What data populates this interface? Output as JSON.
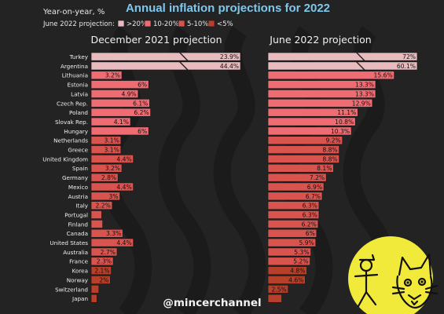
{
  "header": {
    "subtitle": "Year-on-year, %",
    "legend_label": "June 2022 projection:",
    "legend": [
      {
        "label": ">20%",
        "color": "#e8bcbf"
      },
      {
        "label": "10-20%",
        "color": "#f06c73"
      },
      {
        "label": "5-10%",
        "color": "#d9544f"
      },
      {
        "label": "<5%",
        "color": "#b6402a"
      }
    ]
  },
  "footer": {
    "handle": "@mincerchannel"
  },
  "colors": {
    "gt20": "#e8bcbf",
    "b10_20": "#f06c73",
    "b5_10": "#d9544f",
    "lt5": "#b6402a",
    "title": "#7ec8ec"
  },
  "chart_data": {
    "type": "bar",
    "title": "Annual inflation projections for 2022",
    "categories": [
      "Turkey",
      "Argentina",
      "Lithuania",
      "Estonia",
      "Latvia",
      "Czech Rep.",
      "Poland",
      "Slovak Rep.",
      "Hungary",
      "Netherlands",
      "Greece",
      "United Kingdom",
      "Spain",
      "Germany",
      "Mexico",
      "Austria",
      "Italy",
      "Portugal",
      "Finland",
      "Canada",
      "United States",
      "Australia",
      "France",
      "Korea",
      "Norway",
      "Switzerland",
      "Japan"
    ],
    "series": [
      {
        "name": "December 2021 projection",
        "values": [
          23.9,
          44.4,
          3.2,
          6,
          4.9,
          6.1,
          6.2,
          4.1,
          6,
          3.1,
          3.1,
          4.4,
          3.2,
          2.8,
          4.4,
          3,
          2.2,
          1.1,
          1.2,
          3.3,
          4.4,
          2.7,
          2.3,
          2.1,
          2,
          0.8,
          0.6
        ],
        "labels": [
          "23.9%",
          "44.4%",
          "3.2%",
          "6%",
          "4.9%",
          "6.1%",
          "6.2%",
          "4.1%",
          "6%",
          "3.1%",
          "3.1%",
          "4.4%",
          "3.2%",
          "2.8%",
          "4.4%",
          "3%",
          "2.2%",
          "",
          "",
          "3.3%",
          "4.4%",
          "2.7%",
          "2.3%",
          "2.1%",
          "2%",
          "",
          ""
        ]
      },
      {
        "name": "June 2022 projection",
        "values": [
          72,
          60.1,
          15.6,
          13.3,
          13.3,
          12.9,
          11.1,
          10.8,
          10.3,
          9.2,
          8.8,
          8.8,
          8.1,
          7.2,
          6.9,
          6.7,
          6.3,
          6.3,
          6.2,
          6,
          5.9,
          5.3,
          5.2,
          4.8,
          4.6,
          2.5,
          1.7
        ],
        "labels": [
          "72%",
          "60.1%",
          "15.6%",
          "13.3%",
          "13.3%",
          "12.9%",
          "11.1%",
          "10.8%",
          "10.3%",
          "9.2%",
          "8.8%",
          "8.8%",
          "8.1%",
          "7.2%",
          "6.9%",
          "6.7%",
          "6.3%",
          "6.3%",
          "6.2%",
          "6%",
          "5.9%",
          "5.3%",
          "5.2%",
          "4.8%",
          "4.6%",
          "2.5%",
          ""
        ]
      }
    ],
    "axis_break": true,
    "grid": false,
    "legend_position": "top-left"
  }
}
